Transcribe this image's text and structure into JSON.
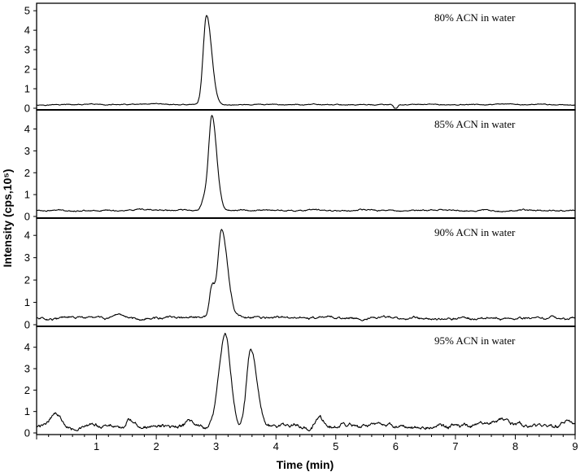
{
  "chart_data": {
    "type": "line",
    "xlabel": "Time (min)",
    "ylabel": "Intensity (cps,10⁵)",
    "xlim": [
      0,
      9
    ],
    "x_ticks": [
      1,
      2,
      3,
      4,
      5,
      6,
      7,
      8,
      9
    ],
    "panels": [
      {
        "label": "80% ACN in water",
        "ylim": [
          0,
          5.3
        ],
        "y_ticks": [
          0,
          1,
          2,
          3,
          4,
          5
        ],
        "baseline": 0.18,
        "noise": 0.03,
        "dips": [
          {
            "x": 6.0,
            "depth": 0.25,
            "width": 0.03
          }
        ],
        "peaks": [
          {
            "x": 2.84,
            "height": 4.6,
            "sigma_left": 0.055,
            "sigma_right": 0.085
          }
        ]
      },
      {
        "label": "85% ACN in water",
        "ylim": [
          0,
          4.8
        ],
        "y_ticks": [
          0,
          1,
          2,
          3,
          4
        ],
        "baseline": 0.28,
        "noise": 0.04,
        "dips": [],
        "peaks": [
          {
            "x": 2.93,
            "height": 4.35,
            "sigma_left": 0.055,
            "sigma_right": 0.08
          },
          {
            "x": 2.8,
            "height": 0.5,
            "sigma_left": 0.05,
            "sigma_right": 0.05
          }
        ]
      },
      {
        "label": "90% ACN in water",
        "ylim": [
          0,
          4.7
        ],
        "y_ticks": [
          0,
          1,
          2,
          3,
          4
        ],
        "baseline": 0.3,
        "noise": 0.07,
        "dips": [],
        "peaks": [
          {
            "x": 3.09,
            "height": 3.9,
            "sigma_left": 0.06,
            "sigma_right": 0.1
          },
          {
            "x": 2.93,
            "height": 1.4,
            "sigma_left": 0.04,
            "sigma_right": 0.05
          }
        ]
      },
      {
        "label": "95% ACN in water",
        "ylim": [
          0,
          4.9
        ],
        "y_ticks": [
          0,
          1,
          2,
          3,
          4
        ],
        "baseline": 0.3,
        "noise": 0.12,
        "dips": [],
        "peaks": [
          {
            "x": 3.15,
            "height": 4.3,
            "sigma_left": 0.1,
            "sigma_right": 0.09
          },
          {
            "x": 3.58,
            "height": 3.6,
            "sigma_left": 0.07,
            "sigma_right": 0.1
          },
          {
            "x": 0.3,
            "height": 0.65,
            "sigma_left": 0.08,
            "sigma_right": 0.1
          },
          {
            "x": 1.55,
            "height": 0.3,
            "sigma_left": 0.05,
            "sigma_right": 0.05
          },
          {
            "x": 2.55,
            "height": 0.3,
            "sigma_left": 0.05,
            "sigma_right": 0.05
          },
          {
            "x": 4.72,
            "height": 0.4,
            "sigma_left": 0.06,
            "sigma_right": 0.08
          },
          {
            "x": 7.8,
            "height": 0.35,
            "sigma_left": 0.1,
            "sigma_right": 0.1
          },
          {
            "x": 8.85,
            "height": 0.35,
            "sigma_left": 0.08,
            "sigma_right": 0.08
          }
        ]
      }
    ]
  }
}
